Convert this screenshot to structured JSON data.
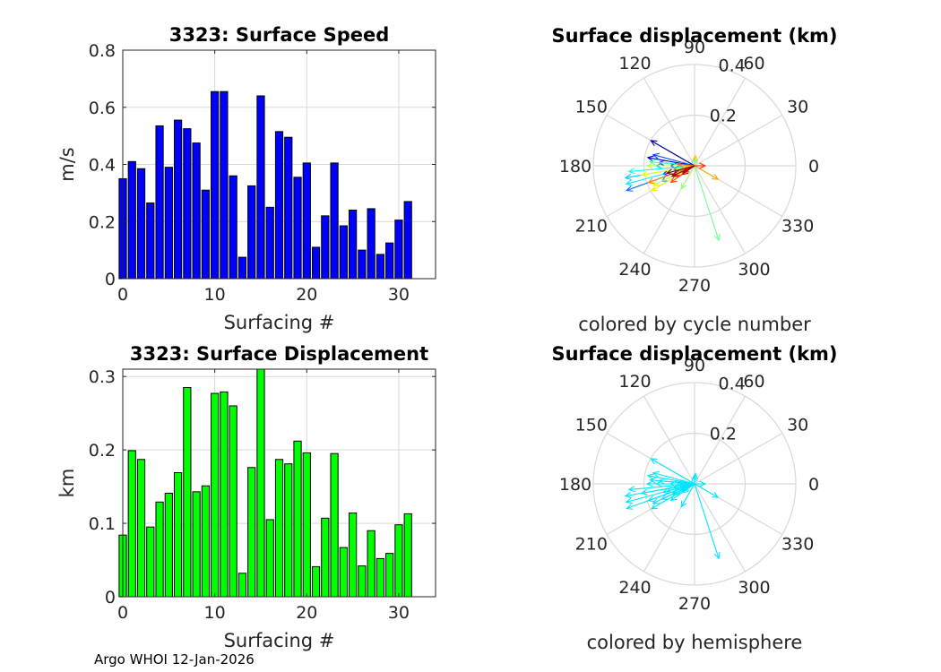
{
  "footer": "Argo WHOI 12-Jan-2026",
  "colors": {
    "speed_bar": "#0000ff",
    "disp_bar": "#00ff00",
    "hemisphere_arrow": "#00e5ff",
    "grid": "#d9d9d9",
    "bar_edge": "#000000"
  },
  "chart_data": [
    {
      "id": "speed",
      "type": "bar",
      "title": "3323: Surface Speed",
      "xlabel": "Surfacing #",
      "ylabel": "m/s",
      "xlim": [
        0,
        34
      ],
      "ylim": [
        0,
        0.8
      ],
      "xticks": [
        0,
        10,
        20,
        30
      ],
      "yticks": [
        0,
        0.2,
        0.4,
        0.6,
        0.8
      ],
      "ytick_labels": [
        "0",
        "0.2",
        "0.4",
        "0.6",
        "0.8"
      ],
      "grid": true,
      "categories": [
        0,
        1,
        2,
        3,
        4,
        5,
        6,
        7,
        8,
        9,
        10,
        11,
        12,
        13,
        14,
        15,
        16,
        17,
        18,
        19,
        20,
        21,
        22,
        23,
        24,
        25,
        26,
        27,
        28,
        29,
        30,
        31
      ],
      "values": [
        0.35,
        0.41,
        0.385,
        0.265,
        0.535,
        0.39,
        0.555,
        0.525,
        0.475,
        0.31,
        0.655,
        0.655,
        0.36,
        0.075,
        0.325,
        0.64,
        0.25,
        0.515,
        0.495,
        0.355,
        0.405,
        0.11,
        0.22,
        0.405,
        0.185,
        0.24,
        0.1,
        0.245,
        0.085,
        0.125,
        0.205,
        0.27
      ]
    },
    {
      "id": "displacement",
      "type": "bar",
      "title": "3323: Surface Displacement",
      "xlabel": "Surfacing #",
      "ylabel": "km",
      "xlim": [
        0,
        34
      ],
      "ylim": [
        0,
        0.31
      ],
      "xticks": [
        0,
        10,
        20,
        30
      ],
      "yticks": [
        0,
        0.1,
        0.2,
        0.3
      ],
      "ytick_labels": [
        "0",
        "0.1",
        "0.2",
        "0.3"
      ],
      "grid": true,
      "categories": [
        0,
        1,
        2,
        3,
        4,
        5,
        6,
        7,
        8,
        9,
        10,
        11,
        12,
        13,
        14,
        15,
        16,
        17,
        18,
        19,
        20,
        21,
        22,
        23,
        24,
        25,
        26,
        27,
        28,
        29,
        30,
        31
      ],
      "values": [
        0.084,
        0.199,
        0.187,
        0.095,
        0.129,
        0.141,
        0.169,
        0.285,
        0.143,
        0.151,
        0.277,
        0.279,
        0.26,
        0.032,
        0.176,
        0.31,
        0.105,
        0.187,
        0.181,
        0.212,
        0.196,
        0.041,
        0.107,
        0.195,
        0.067,
        0.114,
        0.042,
        0.09,
        0.052,
        0.059,
        0.098,
        0.113
      ]
    },
    {
      "id": "polar_cycle",
      "type": "polar",
      "title": "Surface displacement (km)",
      "caption": "colored by cycle number",
      "color_mode": "cycle",
      "rlim": [
        0,
        0.4
      ],
      "rticks": [
        0.2,
        0.4
      ],
      "rtick_labels": [
        "0.2",
        "0.4"
      ],
      "angle_ticks": [
        0,
        30,
        60,
        90,
        120,
        150,
        180,
        210,
        240,
        270,
        300,
        330
      ],
      "angle_labels": [
        "0",
        "30",
        "60",
        "90",
        "120",
        "150",
        "180",
        "210",
        "240",
        "270",
        "300",
        "330"
      ],
      "vectors": [
        {
          "angle": 190,
          "r": 0.084
        },
        {
          "angle": 150,
          "r": 0.199
        },
        {
          "angle": 170,
          "r": 0.187
        },
        {
          "angle": 180,
          "r": 0.095
        },
        {
          "angle": 195,
          "r": 0.129
        },
        {
          "angle": 175,
          "r": 0.141
        },
        {
          "angle": 165,
          "r": 0.169
        },
        {
          "angle": 200,
          "r": 0.285
        },
        {
          "angle": 205,
          "r": 0.143
        },
        {
          "angle": 180,
          "r": 0.151
        },
        {
          "angle": 190,
          "r": 0.277
        },
        {
          "angle": 195,
          "r": 0.279
        },
        {
          "angle": 185,
          "r": 0.26
        },
        {
          "angle": 92,
          "r": 0.032
        },
        {
          "angle": 175,
          "r": 0.176
        },
        {
          "angle": 288,
          "r": 0.31
        },
        {
          "angle": 240,
          "r": 0.105
        },
        {
          "angle": 180,
          "r": 0.187
        },
        {
          "angle": 205,
          "r": 0.181
        },
        {
          "angle": 190,
          "r": 0.212
        },
        {
          "angle": 210,
          "r": 0.196
        },
        {
          "angle": 85,
          "r": 0.041
        },
        {
          "angle": 330,
          "r": 0.107
        },
        {
          "angle": 200,
          "r": 0.195
        },
        {
          "angle": 175,
          "r": 0.067
        },
        {
          "angle": 215,
          "r": 0.114
        },
        {
          "angle": 0,
          "r": 0.042
        },
        {
          "angle": 205,
          "r": 0.09
        },
        {
          "angle": 210,
          "r": 0.052
        },
        {
          "angle": 215,
          "r": 0.059
        },
        {
          "angle": 205,
          "r": 0.098
        },
        {
          "angle": 195,
          "r": 0.113
        }
      ]
    },
    {
      "id": "polar_hemisphere",
      "type": "polar",
      "title": "Surface displacement (km)",
      "caption": "colored by hemisphere",
      "color_mode": "hemisphere",
      "rlim": [
        0,
        0.4
      ],
      "rticks": [
        0.2,
        0.4
      ],
      "rtick_labels": [
        "0.2",
        "0.4"
      ],
      "angle_ticks": [
        0,
        30,
        60,
        90,
        120,
        150,
        180,
        210,
        240,
        270,
        300,
        330
      ],
      "angle_labels": [
        "0",
        "30",
        "60",
        "90",
        "120",
        "150",
        "180",
        "210",
        "240",
        "270",
        "300",
        "330"
      ],
      "vectors": [
        {
          "angle": 190,
          "r": 0.084
        },
        {
          "angle": 150,
          "r": 0.199
        },
        {
          "angle": 170,
          "r": 0.187
        },
        {
          "angle": 180,
          "r": 0.095
        },
        {
          "angle": 195,
          "r": 0.129
        },
        {
          "angle": 175,
          "r": 0.141
        },
        {
          "angle": 165,
          "r": 0.169
        },
        {
          "angle": 200,
          "r": 0.285
        },
        {
          "angle": 205,
          "r": 0.143
        },
        {
          "angle": 180,
          "r": 0.151
        },
        {
          "angle": 190,
          "r": 0.277
        },
        {
          "angle": 195,
          "r": 0.279
        },
        {
          "angle": 185,
          "r": 0.26
        },
        {
          "angle": 92,
          "r": 0.032
        },
        {
          "angle": 175,
          "r": 0.176
        },
        {
          "angle": 288,
          "r": 0.31
        },
        {
          "angle": 240,
          "r": 0.105
        },
        {
          "angle": 180,
          "r": 0.187
        },
        {
          "angle": 205,
          "r": 0.181
        },
        {
          "angle": 190,
          "r": 0.212
        },
        {
          "angle": 210,
          "r": 0.196
        },
        {
          "angle": 85,
          "r": 0.041
        },
        {
          "angle": 330,
          "r": 0.107
        },
        {
          "angle": 200,
          "r": 0.195
        },
        {
          "angle": 175,
          "r": 0.067
        },
        {
          "angle": 215,
          "r": 0.114
        },
        {
          "angle": 0,
          "r": 0.042
        },
        {
          "angle": 205,
          "r": 0.09
        },
        {
          "angle": 210,
          "r": 0.052
        },
        {
          "angle": 215,
          "r": 0.059
        },
        {
          "angle": 205,
          "r": 0.098
        },
        {
          "angle": 195,
          "r": 0.113
        }
      ]
    }
  ]
}
